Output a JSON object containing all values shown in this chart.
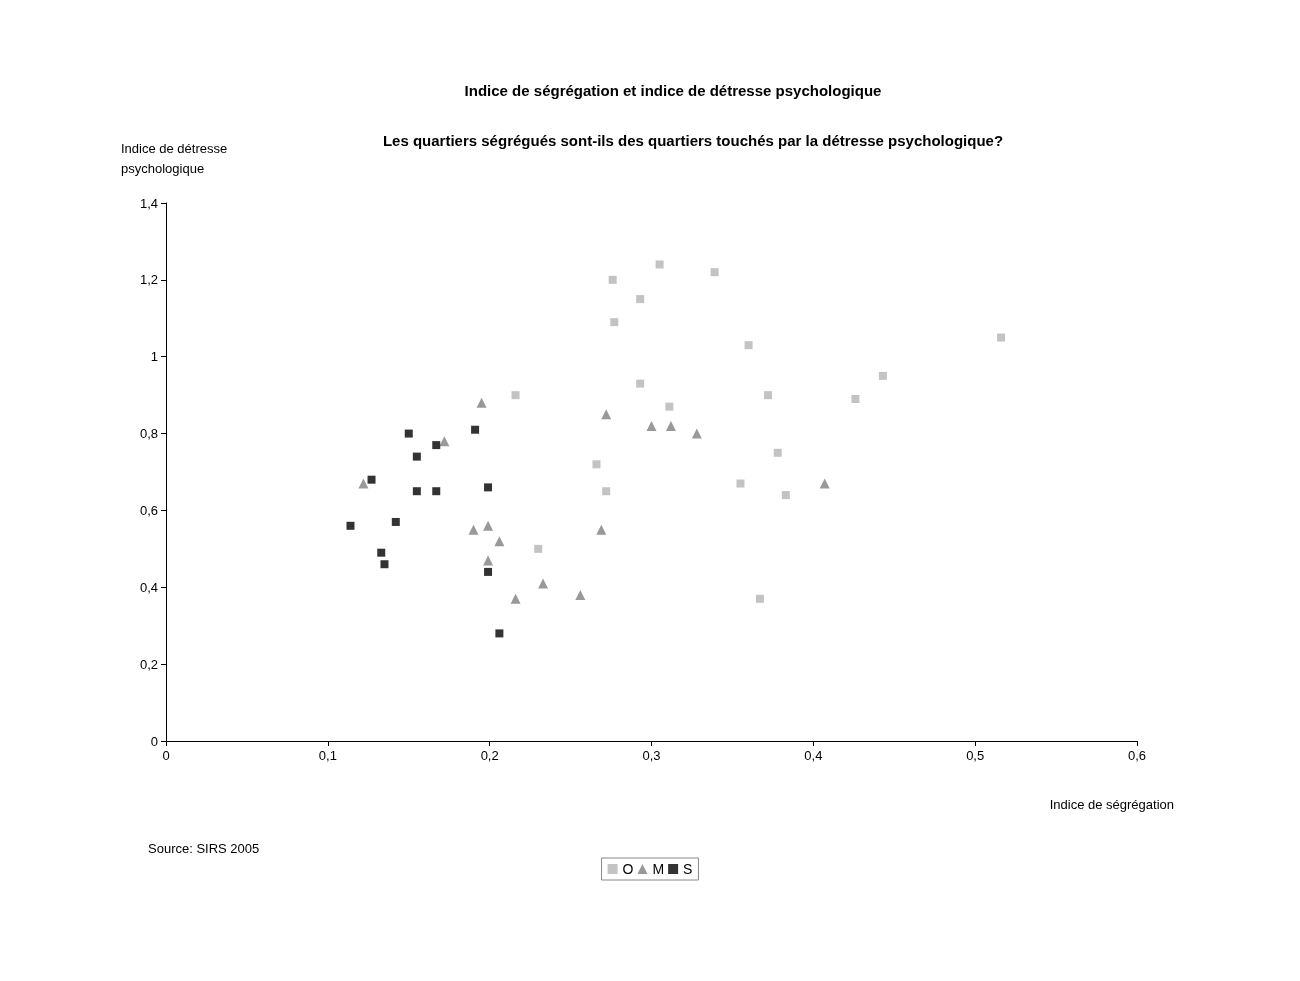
{
  "chart_data": {
    "type": "scatter",
    "title": "Indice de ségrégation et indice de détresse psychologique",
    "subtitle": "Les quartiers ségrégués sont-ils des quartiers touchés par la détresse psychologique?",
    "xlabel": "Indice de ségrégation",
    "ylabel": "Indice de détresse psychologique",
    "annotations": [
      "Source: SIRS 2005"
    ],
    "xlim": [
      0,
      0.6
    ],
    "xticks": [
      0,
      {
        "value": 0.1,
        "label": "0,1"
      },
      {
        "value": 0.2,
        "label": "0,2"
      },
      {
        "value": 0.3,
        "label": "0,3"
      },
      {
        "value": 0.4,
        "label": "0,4"
      },
      {
        "value": 0.5,
        "label": "0,5"
      },
      {
        "value": 0.6,
        "label": "0,6"
      }
    ],
    "ylim": [
      0,
      1.4
    ],
    "yticks": [
      0,
      {
        "value": 0.2,
        "label": "0,2"
      },
      {
        "value": 0.4,
        "label": "0,4"
      },
      {
        "value": 0.6,
        "label": "0,6"
      },
      {
        "value": 0.8,
        "label": "0,8"
      },
      1,
      {
        "value": 1.2,
        "label": "1,2"
      },
      {
        "value": 1.4,
        "label": "1,4"
      }
    ],
    "grid": false,
    "legend": "bottom",
    "series": [
      {
        "name": "O",
        "color": "#b4b4b4",
        "marker": "square",
        "x": [
          0.216,
          0.276,
          0.305,
          0.339,
          0.293,
          0.277,
          0.36,
          0.516,
          0.293,
          0.311,
          0.372,
          0.443,
          0.426,
          0.378,
          0.266,
          0.272,
          0.355,
          0.383,
          0.23,
          0.367
        ],
        "values": [
          0.9,
          1.2,
          1.24,
          1.22,
          1.15,
          1.09,
          1.03,
          1.05,
          0.93,
          0.87,
          0.9,
          0.95,
          0.89,
          0.75,
          0.72,
          0.65,
          0.67,
          0.64,
          0.5,
          0.37
        ]
      },
      {
        "name": "M",
        "color": "#808080",
        "marker": "triangle",
        "x": [
          0.122,
          0.172,
          0.195,
          0.272,
          0.3,
          0.312,
          0.328,
          0.407,
          0.19,
          0.199,
          0.206,
          0.199,
          0.216,
          0.233,
          0.256,
          0.269
        ],
        "values": [
          0.67,
          0.78,
          0.88,
          0.85,
          0.82,
          0.82,
          0.8,
          0.67,
          0.55,
          0.56,
          0.52,
          0.47,
          0.37,
          0.41,
          0.38,
          0.55
        ]
      },
      {
        "name": "S",
        "color": "#000000",
        "marker": "square",
        "x": [
          0.114,
          0.127,
          0.133,
          0.135,
          0.142,
          0.15,
          0.155,
          0.155,
          0.167,
          0.167,
          0.191,
          0.199,
          0.199,
          0.206
        ],
        "values": [
          0.56,
          0.68,
          0.49,
          0.46,
          0.57,
          0.8,
          0.74,
          0.65,
          0.77,
          0.65,
          0.81,
          0.66,
          0.44,
          0.28
        ]
      }
    ]
  }
}
